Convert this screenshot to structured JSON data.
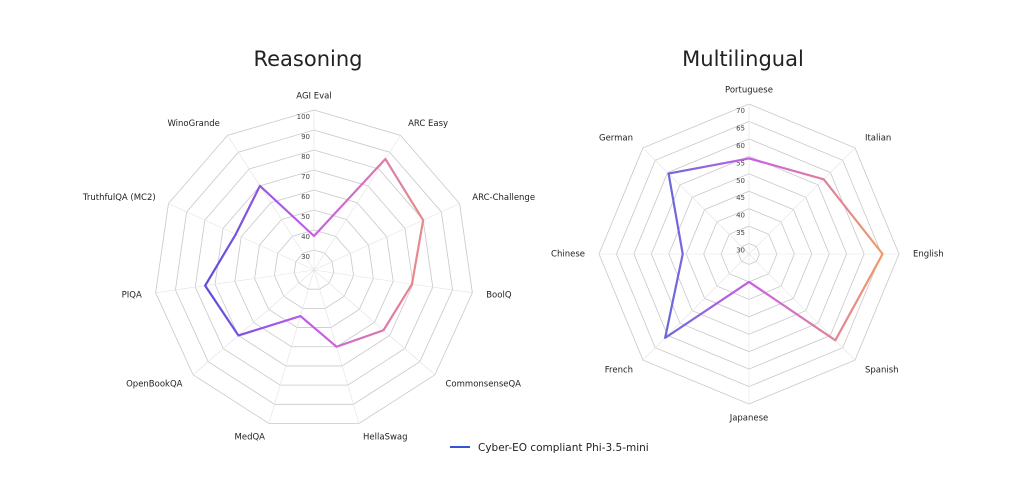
{
  "chart_data": [
    {
      "type": "radar",
      "title": "Reasoning",
      "categories": [
        "AGI Eval",
        "ARC Easy",
        "ARC-Challenge",
        "BoolQ",
        "CommonsenseQA",
        "HellaSwag",
        "MedQA",
        "OpenBookQA",
        "PIQA",
        "TruthfulQA (MC2)",
        "WinoGrande"
      ],
      "rlim": [
        20,
        100
      ],
      "rticks": [
        30,
        40,
        50,
        60,
        70,
        80,
        90,
        100
      ],
      "grid": true,
      "series": [
        {
          "name": "Cyber-EO compliant Phi-3.5-mini",
          "colors": [
            "#2346d8",
            "#c85ee8",
            "#f6a15a"
          ],
          "values": [
            37,
            86,
            80,
            69.5,
            66,
            60,
            44,
            70,
            75,
            63,
            70
          ]
        }
      ]
    },
    {
      "type": "radar",
      "title": "Multilingual",
      "categories": [
        "Portuguese",
        "Italian",
        "English",
        "Spanish",
        "Japanese",
        "French",
        "Chinese",
        "German"
      ],
      "rlim": [
        27,
        70
      ],
      "rticks": [
        30,
        35,
        40,
        45,
        50,
        55,
        60,
        65,
        70
      ],
      "grid": true,
      "series": [
        {
          "colors": [
            "#1c6fd0",
            "#c85ee8",
            "#f6a15a"
          ],
          "values": [
            54.4,
            57.3,
            65.3,
            62,
            35,
            61,
            46,
            59.6
          ]
        }
      ]
    }
  ]
}
